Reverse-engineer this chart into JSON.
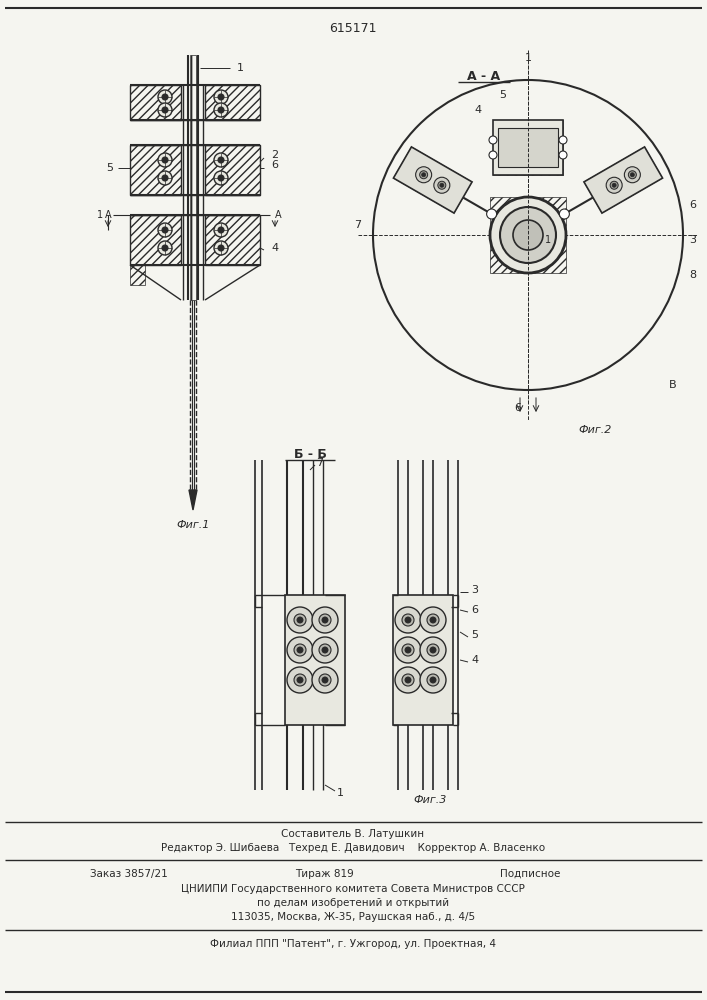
{
  "patent_number": "615171",
  "background_color": "#f5f5f0",
  "line_color": "#2a2a2a",
  "fig1_label": "Фиг.1",
  "fig2_label": "Фиг.2",
  "fig3_label": "Фиг.3",
  "section_aa": "А - А",
  "section_bb": "Б - Б",
  "footer_line1": "Составитель В. Латушкин",
  "footer_line2": "Редактор Э. Шибаева   Техред Е. Давидович    Корректор А. Власенко",
  "footer_line3a": "Заказ 3857/21",
  "footer_line3b": "Тираж 819",
  "footer_line3c": "Подписное",
  "footer_line4": "ЦНИИПИ Государственного комитета Совета Министров СССР",
  "footer_line5": "по делам изобретений и открытий",
  "footer_line6": "113035, Москва, Ж-35, Раушская наб., д. 4/5",
  "footer_line7": "Филиал ППП \"Патент\", г. Ужгород, ул. Проектная, 4"
}
